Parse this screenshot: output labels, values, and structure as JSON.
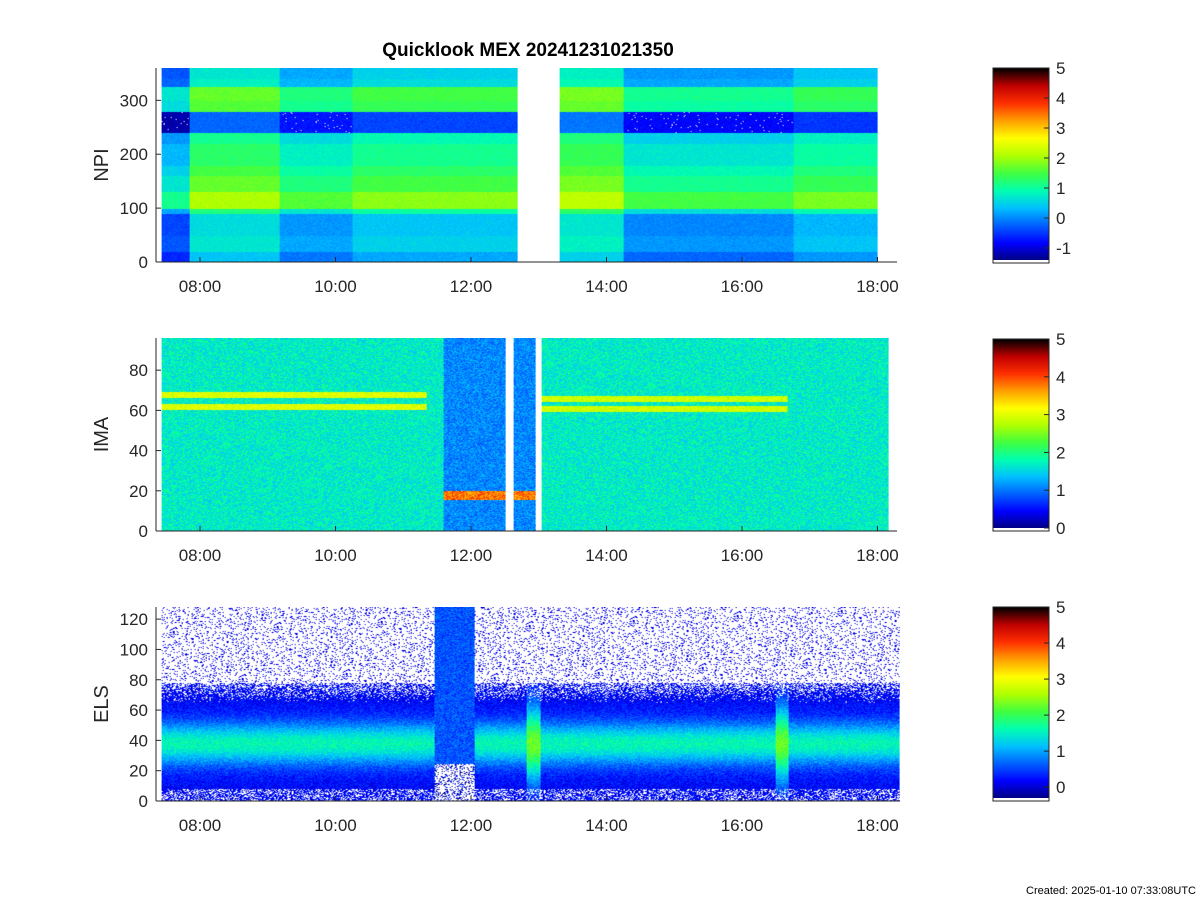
{
  "figure": {
    "title": "Quicklook MEX 20241231021350",
    "created": "Created: 2025-01-10 07:33:08UTC"
  },
  "colormap": [
    "#000080",
    "#0000ff",
    "#0060ff",
    "#00c0ff",
    "#00ffb0",
    "#40ff40",
    "#b0ff00",
    "#ffff00",
    "#ffa000",
    "#ff3000",
    "#c00000",
    "#000000"
  ],
  "chart_data": [
    {
      "type": "heatmap",
      "name": "NPI",
      "ylabel": "NPI",
      "xlim": [
        "07:26",
        "18:00"
      ],
      "ylim": [
        0,
        360
      ],
      "xticks": [
        "08:00",
        "10:00",
        "12:00",
        "14:00",
        "16:00",
        "18:00"
      ],
      "yticks": [
        0,
        100,
        200,
        300
      ],
      "colorbar": {
        "range": [
          -1.4,
          5
        ],
        "ticks": [
          -1,
          0,
          1,
          2,
          3,
          4,
          5
        ]
      },
      "data_gap": [
        "12:41",
        "13:18"
      ],
      "rows": [
        {
          "from": 0,
          "to": 20,
          "level": 0.0
        },
        {
          "from": 20,
          "to": 50,
          "level": 0.3
        },
        {
          "from": 50,
          "to": 90,
          "level": 0.2
        },
        {
          "from": 90,
          "to": 100,
          "level": 0.8
        },
        {
          "from": 100,
          "to": 130,
          "level": 1.7
        },
        {
          "from": 130,
          "to": 160,
          "level": 1.3
        },
        {
          "from": 160,
          "to": 180,
          "level": 1.1
        },
        {
          "from": 180,
          "to": 220,
          "level": 0.9
        },
        {
          "from": 220,
          "to": 240,
          "level": 0.7
        },
        {
          "from": 240,
          "to": 280,
          "level": -0.6
        },
        {
          "from": 280,
          "to": 300,
          "level": 1.2
        },
        {
          "from": 300,
          "to": 325,
          "level": 1.3
        },
        {
          "from": 325,
          "to": 340,
          "level": 0.4
        },
        {
          "from": 340,
          "to": 360,
          "level": 0.3
        }
      ],
      "segments": [
        {
          "from": "07:26",
          "to": "07:50",
          "offset": -0.6
        },
        {
          "from": "07:50",
          "to": "09:10",
          "offset": 0.4
        },
        {
          "from": "09:10",
          "to": "10:15",
          "offset": -0.1
        },
        {
          "from": "10:15",
          "to": "12:41",
          "offset": 0.2
        },
        {
          "from": "13:18",
          "to": "14:15",
          "offset": 0.5
        },
        {
          "from": "14:15",
          "to": "16:45",
          "offset": -0.2
        },
        {
          "from": "16:45",
          "to": "18:00",
          "offset": 0.1
        }
      ]
    },
    {
      "type": "heatmap",
      "name": "IMA",
      "ylabel": "IMA",
      "xlim": [
        "07:26",
        "18:10"
      ],
      "ylim": [
        0,
        96
      ],
      "xticks": [
        "08:00",
        "10:00",
        "12:00",
        "14:00",
        "16:00",
        "18:00"
      ],
      "yticks": [
        0,
        20,
        40,
        60,
        80
      ],
      "colorbar": {
        "range": [
          0,
          5
        ],
        "ticks": [
          0,
          1,
          2,
          3,
          4,
          5
        ]
      },
      "background_level": 1.7,
      "data_gaps": [
        [
          "12:30",
          "12:37"
        ],
        [
          "12:57",
          "13:02"
        ]
      ],
      "low_region": {
        "from": "11:35",
        "to": "12:57",
        "level": 1.1,
        "ridge_y": 18,
        "ridge_level": 3.8
      },
      "ridges": [
        {
          "from": "07:26",
          "to": "11:20",
          "y": [
            68,
            62
          ],
          "level": 3.0
        },
        {
          "from": "13:02",
          "to": "16:40",
          "y": [
            66,
            61
          ],
          "level": 2.9
        }
      ]
    },
    {
      "type": "heatmap",
      "name": "ELS",
      "ylabel": "ELS",
      "xlim": [
        "07:26",
        "18:20"
      ],
      "ylim": [
        0,
        128
      ],
      "xticks": [
        "08:00",
        "10:00",
        "12:00",
        "14:00",
        "16:00",
        "18:00"
      ],
      "yticks": [
        0,
        20,
        40,
        60,
        80,
        100,
        120
      ],
      "colorbar": {
        "range": [
          -0.3,
          5
        ],
        "ticks": [
          0,
          1,
          2,
          3,
          4,
          5
        ]
      },
      "band_center": 38,
      "band_width": 14,
      "band_level": 1.4,
      "noise_above": 78,
      "features": [
        {
          "at": "11:45",
          "kind": "dropout"
        },
        {
          "at": "12:55",
          "kind": "spike"
        },
        {
          "at": "16:35",
          "kind": "spike"
        }
      ]
    }
  ]
}
